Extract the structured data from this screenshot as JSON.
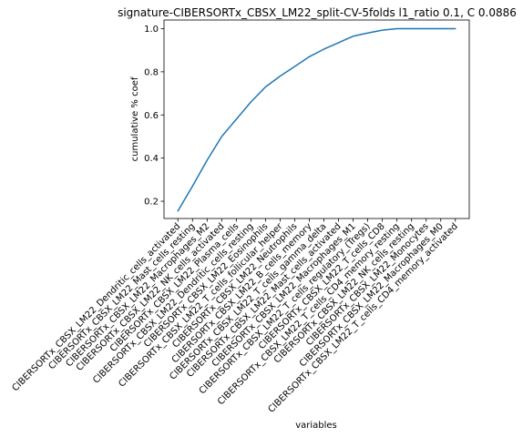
{
  "chart_data": {
    "type": "line",
    "title": "signature-CIBERSORTx_CBSX_LM22_split-CV-5folds l1_ratio 0.1, C 0.0886",
    "xlabel": "variables",
    "ylabel": "cumulative % coef",
    "ylim": [
      0.12,
      1.04
    ],
    "yticks": [
      "0.2",
      "0.4",
      "0.6",
      "0.8",
      "1.0"
    ],
    "ytick_values": [
      0.2,
      0.4,
      0.6,
      0.8,
      1.0
    ],
    "grid": false,
    "legend": "none",
    "line_color": "#1f77b4",
    "categories": [
      "CIBERSORTx_CBSX_LM22_Dendritic_cells_activated",
      "CIBERSORTx_CBSX_LM22_Mast_cells_resting",
      "CIBERSORTx_CBSX_LM22_Macrophages_M2",
      "CIBERSORTx_CBSX_LM22_NK_cells_activated",
      "CIBERSORTx_CBSX_LM22_Plasma_cells",
      "CIBERSORTx_CBSX_LM22_Dendritic_cells_resting",
      "CIBERSORTx_CBSX_LM22_Eosinophils",
      "CIBERSORTx_CBSX_LM22_T_cells_follicular_helper",
      "CIBERSORTx_CBSX_LM22_Neutrophils",
      "CIBERSORTx_CBSX_LM22_B_cells_memory",
      "CIBERSORTx_CBSX_LM22_T_cells_gamma_delta",
      "CIBERSORTx_CBSX_LM22_Mast_cells_activated",
      "CIBERSORTx_CBSX_LM22_Macrophages_M1",
      "CIBERSORTx_CBSX_LM22_T_cells_regulatory_(Tregs)",
      "CIBERSORTx_CBSX_LM22_T_cells_CD8",
      "CIBERSORTx_CBSX_LM22_T_cells_CD4_memory_resting",
      "CIBERSORTx_CBSX_LM22_NK_cells_resting",
      "CIBERSORTx_CBSX_LM22_Monocytes",
      "CIBERSORTx_CBSX_LM22_Macrophages_M0",
      "CIBERSORTx_CBSX_LM22_T_cells_CD4_memory_activated"
    ],
    "values": [
      0.155,
      0.27,
      0.39,
      0.5,
      0.58,
      0.66,
      0.73,
      0.78,
      0.825,
      0.87,
      0.905,
      0.935,
      0.965,
      0.98,
      0.993,
      1.0,
      1.0,
      1.0,
      1.0,
      1.0
    ]
  }
}
